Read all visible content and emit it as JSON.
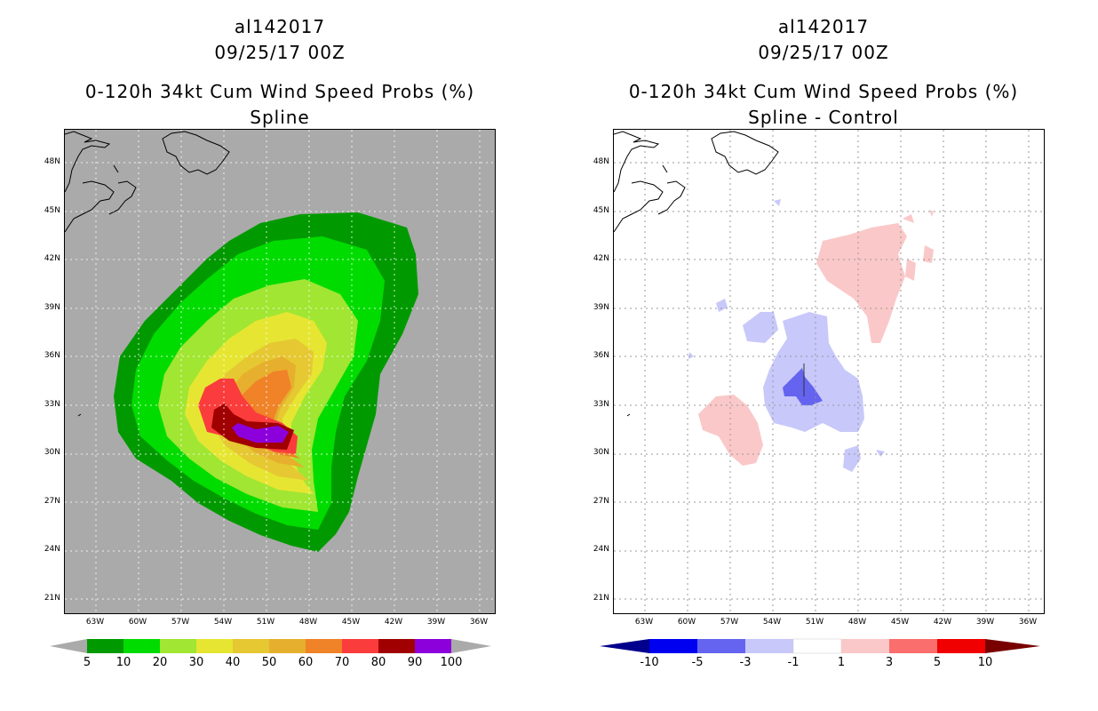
{
  "left": {
    "title_line1": "al142017",
    "title_line2": "09/25/17 00Z",
    "title_line3": "0-120h 34kt Cum Wind Speed Probs (%)",
    "title_line4": "Spline",
    "colorbar_labels": [
      "5",
      "10",
      "20",
      "30",
      "40",
      "50",
      "60",
      "70",
      "80",
      "90",
      "100"
    ],
    "colors": [
      "#009a00",
      "#00dc00",
      "#a0e632",
      "#e6e632",
      "#e6c832",
      "#e6af2d",
      "#f08228",
      "#fa3c3c",
      "#a00000",
      "#8c00dc"
    ]
  },
  "right": {
    "title_line1": "al142017",
    "title_line2": "09/25/17 00Z",
    "title_line3": "0-120h 34kt Cum Wind Speed Probs (%)",
    "title_line4": "Spline - Control",
    "colorbar_labels": [
      "-10",
      "-5",
      "-3",
      "-1",
      "1",
      "3",
      "5",
      "10"
    ],
    "colors": [
      "#0000c8",
      "#6464f0",
      "#c8c8fa",
      "#ffffff",
      "#fac8c8",
      "#fa6e6e",
      "#f00000"
    ]
  },
  "lat_labels": [
    "48N",
    "45N",
    "42N",
    "39N",
    "36N",
    "33N",
    "30N",
    "27N",
    "24N",
    "21N"
  ],
  "lon_labels": [
    "63W",
    "60W",
    "57W",
    "54W",
    "51W",
    "48W",
    "45W",
    "42W",
    "39W",
    "36W"
  ],
  "map_bg_left": "#aaaaaa",
  "map_bg_right": "#ffffff"
}
